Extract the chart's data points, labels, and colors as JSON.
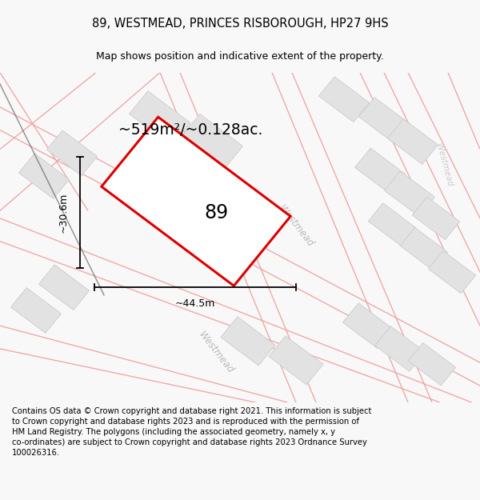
{
  "title": "89, WESTMEAD, PRINCES RISBOROUGH, HP27 9HS",
  "subtitle": "Map shows position and indicative extent of the property.",
  "footer": "Contains OS data © Crown copyright and database right 2021. This information is subject\nto Crown copyright and database rights 2023 and is reproduced with the permission of\nHM Land Registry. The polygons (including the associated geometry, namely x, y\nco-ordinates) are subject to Crown copyright and database rights 2023 Ordnance Survey\n100026316.",
  "area_label": "~519m²/~0.128ac.",
  "number_label": "89",
  "width_label": "~44.5m",
  "height_label": "~30.6m",
  "bg_color": "#f8f8f8",
  "map_bg": "#ffffff",
  "road_color": "#f0a0a0",
  "building_color": "#e2e2e2",
  "plot_edge_color": "#dd0000",
  "title_fontsize": 10.5,
  "subtitle_fontsize": 9,
  "footer_fontsize": 7.2,
  "road_alpha": 0.9,
  "road_lw": 1.0,
  "building_edge_color": "#cccccc"
}
